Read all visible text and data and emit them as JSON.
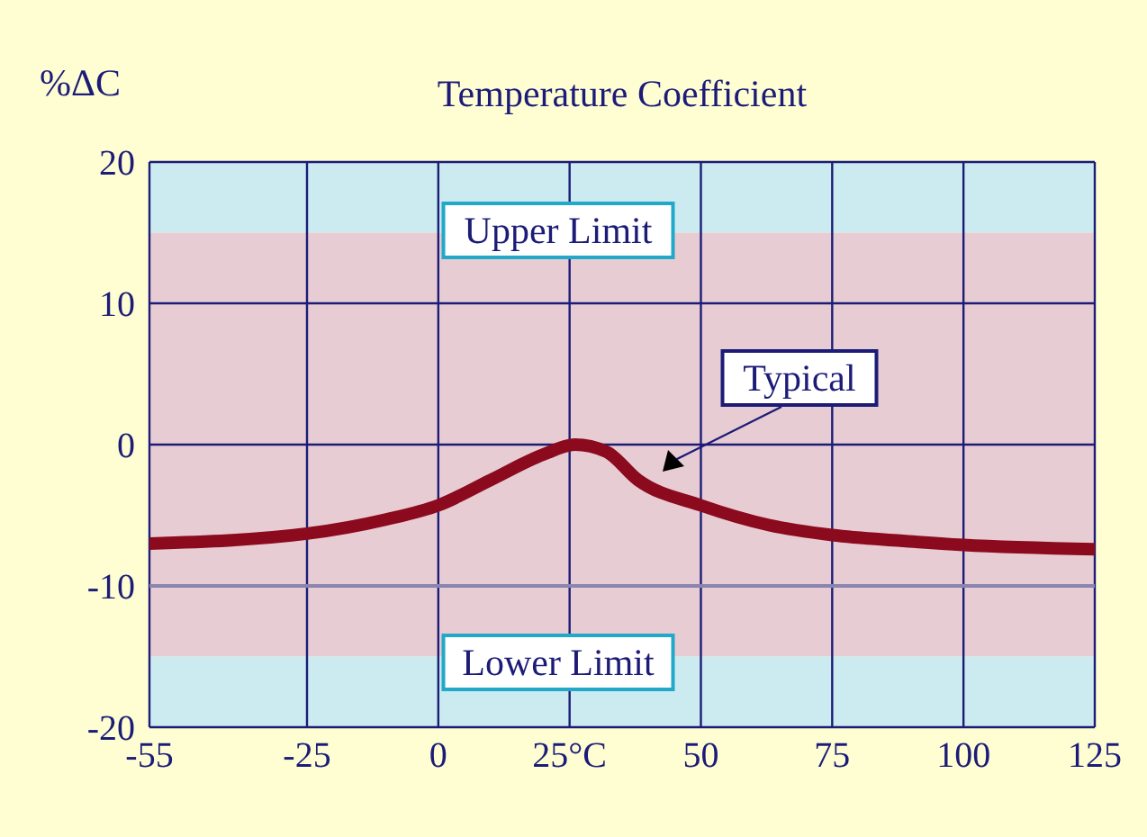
{
  "chart_data": {
    "type": "line",
    "title": "Temperature Coefficient",
    "ylabel": "%ΔC",
    "x": [
      -55,
      -25,
      -10,
      0,
      10,
      20,
      26,
      32,
      38,
      50,
      63,
      75,
      88,
      100,
      125
    ],
    "series": [
      {
        "color": "#8b0a1e",
        "values": [
          -7.0,
          -6.3,
          -5.3,
          -4.3,
          -2.5,
          -0.7,
          0,
          -0.5,
          -2.5,
          -4.3,
          -5.7,
          -6.4,
          -6.8,
          -7.1,
          -7.4
        ]
      }
    ],
    "xlim": [
      -55,
      125
    ],
    "xticks": [
      -55,
      -25,
      0,
      {
        "value": 25,
        "label": "25°C"
      },
      50,
      75,
      100,
      125
    ],
    "ylim": [
      -20,
      20
    ],
    "yticks": [
      -20,
      -10,
      0,
      10,
      20
    ],
    "bands": [
      {
        "axis": "y",
        "from": 15,
        "to": 20,
        "color": "#cbebf0"
      },
      {
        "axis": "y",
        "from": -15,
        "to": 15,
        "color": "#e8ccd3"
      },
      {
        "axis": "y",
        "from": -20,
        "to": -15,
        "color": "#cbebf0"
      }
    ],
    "ref_lines": [
      {
        "axis": "y",
        "value": -10,
        "color": "#8a84b0"
      }
    ],
    "annotations": [
      "Upper Limit",
      "Lower Limit",
      "Typical"
    ],
    "grid": true,
    "marker": "none",
    "line_style": "solid",
    "legend": false
  }
}
